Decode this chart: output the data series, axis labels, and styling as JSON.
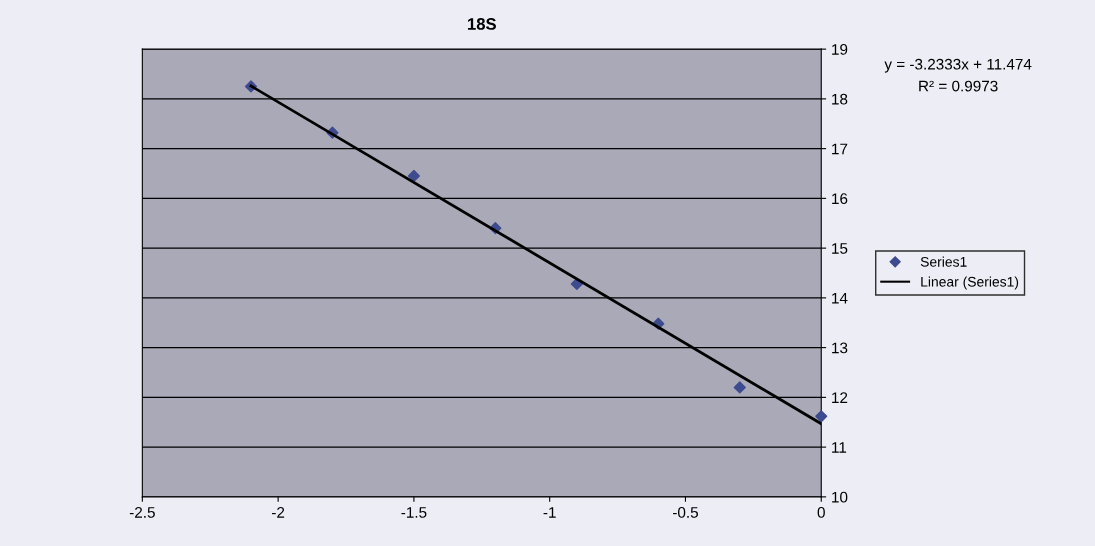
{
  "chart_data": {
    "type": "scatter",
    "title": "18S",
    "series": [
      {
        "name": "Series1",
        "color": "#3d4b8f",
        "marker": "diamond",
        "x": [
          -2.1,
          -1.8,
          -1.5,
          -1.2,
          -0.9,
          -0.6,
          -0.3,
          0
        ],
        "values": [
          18.25,
          17.32,
          16.45,
          15.4,
          14.28,
          13.48,
          12.2,
          11.62
        ]
      },
      {
        "name": "Linear (Series1)",
        "type": "line",
        "color": "#000000",
        "marker": "none",
        "line_style": "solid",
        "x": [
          -2.1,
          0
        ],
        "values": [
          18.26,
          11.47
        ]
      }
    ],
    "xlim": [
      -2.5,
      0
    ],
    "xticks": [
      -2.5,
      -2,
      -1.5,
      -1,
      -0.5,
      0
    ],
    "ylim": [
      10,
      19
    ],
    "yticks": [
      10,
      11,
      12,
      13,
      14,
      15,
      16,
      17,
      18,
      19
    ],
    "grid": "y",
    "legend": "right",
    "annotations": [
      "y = -3.2333x + 11.474",
      "R² = 0.9973"
    ]
  }
}
